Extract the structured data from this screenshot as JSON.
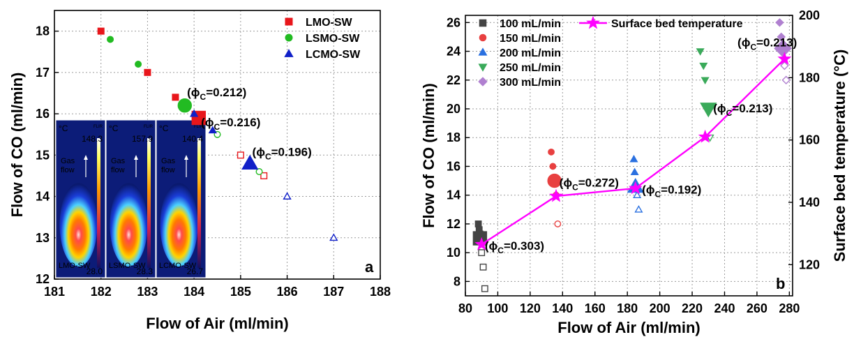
{
  "chart_data": [
    {
      "type": "scatter",
      "panel_label": "a",
      "xlabel": "Flow of Air (ml/min)",
      "ylabel": "Flow of CO (ml/min)",
      "xlim": [
        181,
        188
      ],
      "ylim": [
        12,
        18.5
      ],
      "xticks": [
        "181",
        "182",
        "183",
        "184",
        "185",
        "186",
        "187",
        "188"
      ],
      "yticks": [
        "12",
        "13",
        "14",
        "15",
        "16",
        "17",
        "18"
      ],
      "grid": true,
      "legend_position": "top-right",
      "series": [
        {
          "name": "LMO-SW",
          "marker": "square",
          "color": "#e8161b",
          "filled": [
            [
              182.0,
              18.0
            ],
            [
              183.0,
              17.0
            ],
            [
              183.6,
              16.4
            ]
          ],
          "big": [
            [
              184.1,
              15.9
            ]
          ],
          "open": [
            [
              185.0,
              15.0
            ],
            [
              185.5,
              14.5
            ]
          ]
        },
        {
          "name": "LSMO-SW",
          "marker": "circle",
          "color": "#22bb22",
          "filled": [
            [
              182.2,
              17.8
            ],
            [
              182.8,
              17.2
            ]
          ],
          "big": [
            [
              183.8,
              16.2
            ]
          ],
          "open": [
            [
              184.5,
              15.5
            ],
            [
              185.4,
              14.6
            ]
          ]
        },
        {
          "name": "LCMO-SW",
          "marker": "triangle",
          "color": "#1020c8",
          "filled": [
            [
              184.0,
              16.0
            ],
            [
              184.4,
              15.6
            ]
          ],
          "big": [
            [
              185.2,
              14.8
            ]
          ],
          "open": [
            [
              186.0,
              14.0
            ],
            [
              187.0,
              13.0
            ]
          ]
        }
      ],
      "annotations": [
        {
          "text": "(ϕC=0.212)",
          "x": 183.85,
          "y": 16.42
        },
        {
          "text": "(ϕC=0.216)",
          "x": 184.15,
          "y": 15.7
        },
        {
          "text": "(ϕC=0.196)",
          "x": 185.25,
          "y": 14.98
        }
      ],
      "inset_images": [
        {
          "name": "LMO-SW",
          "unit": "°C",
          "brand": "FLIR",
          "max": "148.3",
          "min": "28.0",
          "gas_flow": "Gas flow"
        },
        {
          "name": "LSMO-SW",
          "unit": "°C",
          "brand": "FLIR",
          "max": "157.9",
          "min": "28.3",
          "gas_flow": "Gas flow"
        },
        {
          "name": "LCMO-SW",
          "unit": "°C",
          "brand": "FLIR",
          "max": "140.4",
          "min": "26.7",
          "gas_flow": "Gas flow"
        }
      ]
    },
    {
      "type": "scatter",
      "panel_label": "b",
      "xlabel": "Flow of Air (ml/min)",
      "ylabel": "Flow of CO (ml/min)",
      "y2label": "Surface bed temperature (°C)",
      "xlim": [
        80,
        282
      ],
      "ylim": [
        7,
        26.5
      ],
      "y2lim": [
        110,
        200
      ],
      "xticks": [
        "80",
        "100",
        "120",
        "140",
        "160",
        "180",
        "200",
        "220",
        "240",
        "260",
        "280"
      ],
      "yticks": [
        "8",
        "10",
        "12",
        "14",
        "16",
        "18",
        "20",
        "22",
        "24",
        "26"
      ],
      "y2ticks": [
        "120",
        "140",
        "160",
        "180",
        "200"
      ],
      "grid": true,
      "legend_position": "top-left",
      "series": [
        {
          "name": "100 mL/min",
          "marker": "square",
          "color": "#444444",
          "filled": [
            [
              88,
              12.0
            ],
            [
              88.5,
              11.6
            ],
            [
              89,
              11.3
            ],
            [
              89.5,
              11.1
            ],
            [
              90,
              10.9
            ]
          ],
          "big": [
            [
              89,
              11.0
            ]
          ],
          "open": [
            [
              90,
              10.0
            ],
            [
              91,
              9.0
            ],
            [
              92,
              7.5
            ]
          ]
        },
        {
          "name": "150 mL/min",
          "marker": "circle",
          "color": "#e84040",
          "filled": [
            [
              133,
              17.0
            ],
            [
              134,
              16.0
            ]
          ],
          "big": [
            [
              135,
              15.0
            ]
          ],
          "open": [
            [
              136,
              14.0
            ],
            [
              137,
              12.0
            ]
          ]
        },
        {
          "name": "200 mL/min",
          "marker": "triangle",
          "color": "#2a70e0",
          "filled": [
            [
              184,
              16.5
            ],
            [
              184.5,
              15.6
            ]
          ],
          "big": [
            [
              185,
              14.6
            ]
          ],
          "open": [
            [
              186,
              14.0
            ],
            [
              187,
              13.0
            ]
          ]
        },
        {
          "name": "250 mL/min",
          "marker": "triangle-down",
          "color": "#3aaa5a",
          "filled": [
            [
              225,
              24.0
            ],
            [
              227,
              23.0
            ],
            [
              228,
              22.0
            ]
          ],
          "big": [
            [
              230,
              20.0
            ]
          ],
          "open": [
            [
              231,
              18.0
            ]
          ]
        },
        {
          "name": "300 mL/min",
          "marker": "diamond",
          "color": "#b080d0",
          "filled": [
            [
              274,
              26.0
            ],
            [
              275,
              25.0
            ]
          ],
          "big": [
            [
              276,
              24.2
            ]
          ],
          "open": [
            [
              277,
              23.0
            ],
            [
              278,
              22.0
            ]
          ]
        }
      ],
      "line_series": {
        "name": "Surface bed temperature",
        "color": "#ff00ff",
        "marker": "star",
        "axis": "right",
        "x": [
          90,
          136,
          185,
          228,
          277
        ],
        "y": [
          126.5,
          142,
          144.5,
          161,
          186
        ]
      },
      "annotations": [
        {
          "text": "(ϕC=0.303)",
          "x": 92,
          "y": 10.2
        },
        {
          "text": "(ϕC=0.272)",
          "x": 138,
          "y": 14.6
        },
        {
          "text": "(ϕC=0.192)",
          "x": 189,
          "y": 14.1
        },
        {
          "text": "(ϕC=0.213)",
          "x": 233,
          "y": 19.75
        },
        {
          "text": "(ϕC=0.213)",
          "x": 248,
          "y": 24.35
        }
      ]
    }
  ]
}
